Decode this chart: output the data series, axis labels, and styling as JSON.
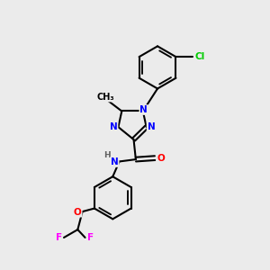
{
  "bg_color": "#ebebeb",
  "bond_color": "#000000",
  "atom_colors": {
    "N": "#0000ff",
    "O": "#ff0000",
    "F": "#ff00ff",
    "Cl": "#00cc00",
    "C": "#000000",
    "H": "#606060"
  }
}
